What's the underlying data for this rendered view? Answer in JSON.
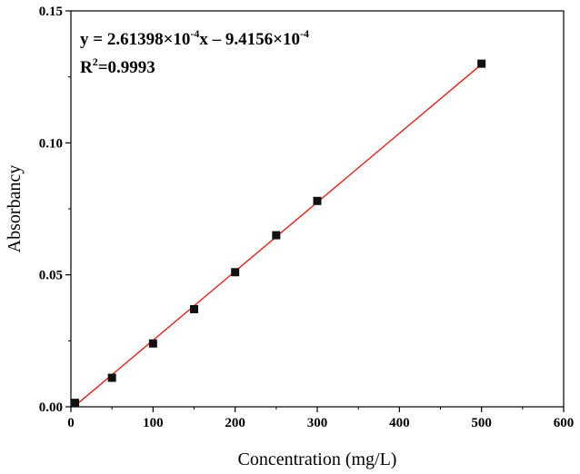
{
  "chart_data": {
    "type": "scatter",
    "xlabel": "Concentration (mg/L)",
    "ylabel": "Absorbancy",
    "xlim": [
      0,
      600
    ],
    "ylim": [
      0,
      0.15
    ],
    "x_ticks": [
      0,
      100,
      200,
      300,
      400,
      500,
      600
    ],
    "x_tick_labels": [
      "0",
      "100",
      "200",
      "300",
      "400",
      "500",
      "600"
    ],
    "y_ticks": [
      0,
      0.05,
      0.1,
      0.15
    ],
    "y_tick_labels": [
      "0.00",
      "0.05",
      "0.10",
      "0.15"
    ],
    "grid": false,
    "points": {
      "x": [
        5,
        50,
        100,
        150,
        200,
        250,
        300,
        500
      ],
      "y": [
        0.0015,
        0.011,
        0.024,
        0.037,
        0.051,
        0.065,
        0.078,
        0.13
      ]
    },
    "fit_line": {
      "slope": 0.000261398,
      "intercept": -0.00094156,
      "x_range": [
        5,
        500
      ]
    },
    "annotation": {
      "eq_prefix": "y = 2.61398×10",
      "eq_exp1": "-4",
      "eq_middle": "x – 9.4156×10",
      "eq_exp2": "-4",
      "r2_base": "R",
      "r2_exp": "2",
      "r2_value": "=0.9993"
    },
    "colors": {
      "marker": "#111111",
      "fit_line": "#e8201a",
      "axis": "#000000"
    }
  }
}
